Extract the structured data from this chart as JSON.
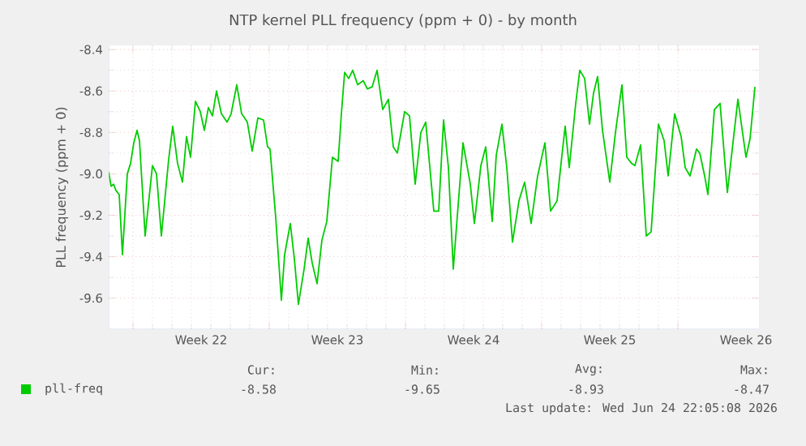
{
  "chart_data": {
    "type": "line",
    "title": "NTP kernel PLL frequency (ppm + 0) - by month",
    "ylabel": "PLL frequency (ppm + 0)",
    "xlim": [
      "2026-05-23T18:00",
      "2026-06-26T04:00"
    ],
    "ylim": [
      -9.75,
      -8.38
    ],
    "xticks": [
      {
        "value": "2026-05-25",
        "label": null
      },
      {
        "value": "2026-05-28T12:00",
        "label": "Week 22"
      },
      {
        "value": "2026-06-01",
        "label": null
      },
      {
        "value": "2026-06-04T12:00",
        "label": "Week 23"
      },
      {
        "value": "2026-06-08",
        "label": null
      },
      {
        "value": "2026-06-11T12:00",
        "label": "Week 24"
      },
      {
        "value": "2026-06-15",
        "label": null
      },
      {
        "value": "2026-06-18T12:00",
        "label": "Week 25"
      },
      {
        "value": "2026-06-22",
        "label": null
      },
      {
        "value": "2026-06-25T12:00",
        "label": "Week 26"
      }
    ],
    "yticks": [
      -9.6,
      -9.4,
      -9.2,
      {
        "value": -9.0,
        "label": "-9.0"
      },
      -8.8,
      -8.6,
      -8.4
    ],
    "grid": true,
    "legend": "bottom",
    "series": [
      {
        "name": "pll-freq",
        "color": "#00cc00",
        "x": [
          "2026-05-23T18:00",
          "2026-05-23T21:00",
          "2026-05-24T00:00",
          "2026-05-24T03:00",
          "2026-05-24T07:00",
          "2026-05-24T11:00",
          "2026-05-24T17:00",
          "2026-05-24T21:00",
          "2026-05-25T01:00",
          "2026-05-25T05:00",
          "2026-05-25T08:00",
          "2026-05-25T15:00",
          "2026-05-26T00:00",
          "2026-05-26T05:00",
          "2026-05-26T11:00",
          "2026-05-26T20:00",
          "2026-05-27T01:00",
          "2026-05-27T07:00",
          "2026-05-27T13:00",
          "2026-05-27T18:00",
          "2026-05-27T23:00",
          "2026-05-28T05:00",
          "2026-05-28T11:00",
          "2026-05-28T16:00",
          "2026-05-28T21:00",
          "2026-05-29T02:00",
          "2026-05-29T07:00",
          "2026-05-29T13:00",
          "2026-05-29T20:00",
          "2026-05-30T01:00",
          "2026-05-30T08:00",
          "2026-05-30T14:00",
          "2026-05-30T21:00",
          "2026-05-31T03:00",
          "2026-05-31T10:00",
          "2026-05-31T17:00",
          "2026-05-31T22:00",
          "2026-06-01T01:00",
          "2026-06-01T08:00",
          "2026-06-01T15:00",
          "2026-06-01T19:00",
          "2026-06-02T02:00",
          "2026-06-02T07:00",
          "2026-06-02T12:00",
          "2026-06-02T19:00",
          "2026-06-03T00:00",
          "2026-06-03T05:00",
          "2026-06-03T11:00",
          "2026-06-03T17:00",
          "2026-06-03T23:00",
          "2026-06-04T06:00",
          "2026-06-04T13:00",
          "2026-06-04T17:00",
          "2026-06-04T21:00",
          "2026-06-05T02:00",
          "2026-06-05T07:00",
          "2026-06-05T13:00",
          "2026-06-05T20:00",
          "2026-06-06T01:00",
          "2026-06-06T07:00",
          "2026-06-06T13:00",
          "2026-06-06T20:00",
          "2026-06-07T03:00",
          "2026-06-07T09:00",
          "2026-06-07T14:00",
          "2026-06-07T23:00",
          "2026-06-08T05:00",
          "2026-06-08T12:00",
          "2026-06-08T19:00",
          "2026-06-09T01:00",
          "2026-06-09T11:00",
          "2026-06-09T17:00",
          "2026-06-09T23:00",
          "2026-06-10T05:00",
          "2026-06-10T11:00",
          "2026-06-10T17:00",
          "2026-06-10T23:00",
          "2026-06-11T08:00",
          "2026-06-11T13:00",
          "2026-06-11T21:00",
          "2026-06-12T03:00",
          "2026-06-12T11:00",
          "2026-06-12T16:00",
          "2026-06-12T23:00",
          "2026-06-13T05:00",
          "2026-06-13T12:00",
          "2026-06-13T20:00",
          "2026-06-14T03:00",
          "2026-06-14T11:00",
          "2026-06-14T19:00",
          "2026-06-15T04:00",
          "2026-06-15T11:00",
          "2026-06-15T19:00",
          "2026-06-16T01:00",
          "2026-06-16T05:00",
          "2026-06-16T10:00",
          "2026-06-16T18:00",
          "2026-06-16T23:00",
          "2026-06-17T05:00",
          "2026-06-17T11:00",
          "2026-06-17T16:00",
          "2026-06-17T21:00",
          "2026-06-18T03:00",
          "2026-06-18T12:00",
          "2026-06-18T19:00",
          "2026-06-19T03:00",
          "2026-06-19T09:00",
          "2026-06-19T15:00",
          "2026-06-19T19:00",
          "2026-06-20T02:00",
          "2026-06-20T09:00",
          "2026-06-20T15:00",
          "2026-06-21T00:00",
          "2026-06-21T07:00",
          "2026-06-21T12:00",
          "2026-06-21T20:00",
          "2026-06-22T04:00",
          "2026-06-22T09:00",
          "2026-06-22T15:00",
          "2026-06-22T23:00",
          "2026-06-23T03:00",
          "2026-06-23T09:00",
          "2026-06-23T13:00",
          "2026-06-23T21:00",
          "2026-06-24T04:00",
          "2026-06-24T13:00",
          "2026-06-25T02:00",
          "2026-06-25T12:00",
          "2026-06-25T17:00",
          "2026-06-25T23:00"
        ],
        "values": [
          -8.99,
          -9.06,
          -9.05,
          -9.08,
          -9.1,
          -9.39,
          -9.0,
          -8.95,
          -8.85,
          -8.79,
          -8.84,
          -9.3,
          -8.96,
          -9.0,
          -9.3,
          -8.93,
          -8.77,
          -8.95,
          -9.04,
          -8.82,
          -8.92,
          -8.65,
          -8.7,
          -8.79,
          -8.68,
          -8.72,
          -8.6,
          -8.71,
          -8.75,
          -8.71,
          -8.57,
          -8.71,
          -8.75,
          -8.89,
          -8.73,
          -8.74,
          -8.87,
          -8.88,
          -9.21,
          -9.61,
          -9.39,
          -9.24,
          -9.41,
          -9.63,
          -9.46,
          -9.31,
          -9.43,
          -9.53,
          -9.32,
          -9.23,
          -8.92,
          -8.94,
          -8.71,
          -8.51,
          -8.54,
          -8.5,
          -8.57,
          -8.55,
          -8.59,
          -8.58,
          -8.5,
          -8.69,
          -8.64,
          -8.87,
          -8.9,
          -8.7,
          -8.72,
          -9.05,
          -8.8,
          -8.75,
          -9.18,
          -9.18,
          -8.74,
          -8.97,
          -9.46,
          -9.15,
          -8.85,
          -9.05,
          -9.24,
          -8.96,
          -8.87,
          -9.23,
          -8.91,
          -8.76,
          -8.97,
          -9.33,
          -9.13,
          -9.04,
          -9.24,
          -9.01,
          -8.85,
          -9.18,
          -9.13,
          -8.91,
          -8.77,
          -8.97,
          -8.66,
          -8.5,
          -8.54,
          -8.76,
          -8.61,
          -8.53,
          -8.79,
          -9.04,
          -8.8,
          -8.57,
          -8.92,
          -8.95,
          -8.96,
          -8.86,
          -9.3,
          -9.28,
          -8.76,
          -8.84,
          -9.01,
          -8.71,
          -8.82,
          -8.97,
          -9.01,
          -8.88,
          -8.9,
          -9.01,
          -9.1,
          -8.69,
          -8.66,
          -9.09,
          -8.64,
          -8.92,
          -8.83,
          -8.58
        ]
      }
    ],
    "annotations": [
      "Cur:",
      "Min:",
      "Avg:",
      "Max:",
      "-8.58",
      "-9.65",
      "-8.93",
      "-8.47",
      "Last update: Wed Jun 24 22:05:08 2026"
    ]
  }
}
